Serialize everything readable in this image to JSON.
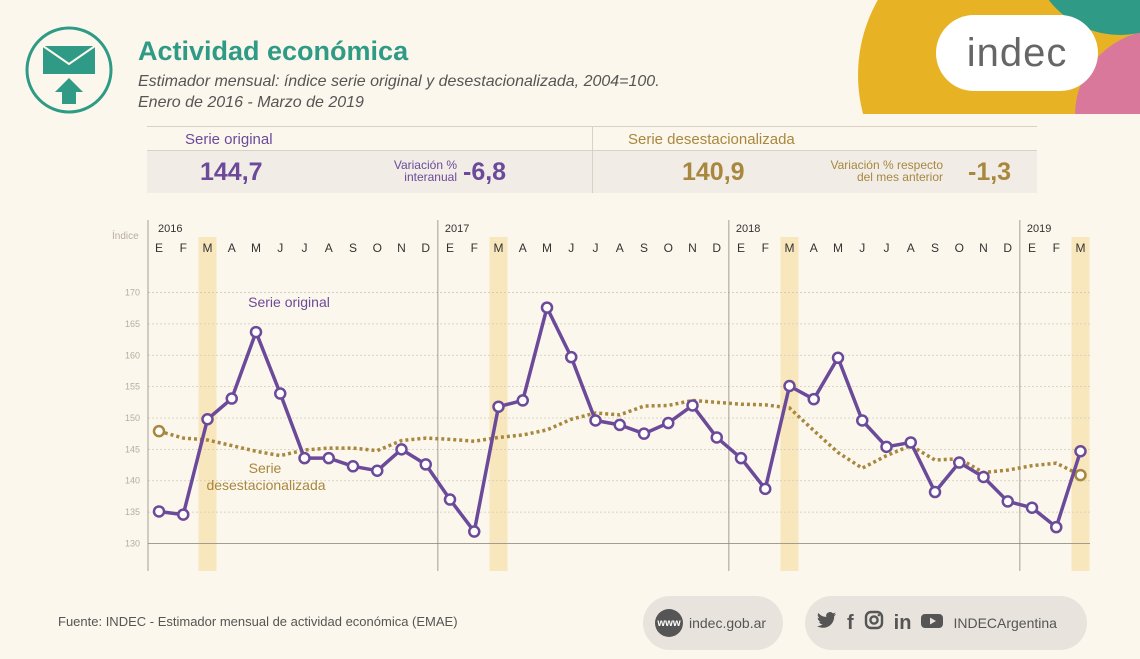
{
  "header": {
    "title": "Actividad económica",
    "subtitle_line1": "Estimador mensual: índice serie original y desestacionalizada, 2004=100.",
    "subtitle_line2": "Enero de 2016 - Marzo de 2019",
    "logo_text": "indec"
  },
  "stats": {
    "original": {
      "label": "Serie original",
      "value": "144,7",
      "variation_label_1": "Variación %",
      "variation_label_2": "interanual",
      "variation_value": "-6,8"
    },
    "deseasonal": {
      "label": "Serie desestacionalizada",
      "value": "140,9",
      "variation_label_1": "Variación % respecto",
      "variation_label_2": "del mes anterior",
      "variation_value": "-1,3"
    }
  },
  "footer": {
    "source": "Fuente: INDEC - Estimador mensual de actividad económica (EMAE)",
    "web_badge": "www",
    "web_text": "indec.gob.ar",
    "social_handle": "INDECArgentina",
    "social_icons": [
      "twitter-icon",
      "facebook-icon",
      "instagram-icon",
      "linkedin-icon",
      "youtube-icon"
    ]
  },
  "colors": {
    "accent": "#2f9a86",
    "original": "#6b4a9a",
    "deseasonal": "#a8873e",
    "highlight": "#f8e7bd",
    "deco_yellow": "#e7b325",
    "deco_teal": "#2f9a86",
    "deco_pink": "#d9789a"
  },
  "chart_data": {
    "type": "line",
    "ylabel": "Índice",
    "ylim": [
      128,
      172
    ],
    "yticks": [
      130,
      135,
      140,
      145,
      150,
      155,
      160,
      165,
      170
    ],
    "years": [
      "2016",
      "2017",
      "2018",
      "2019"
    ],
    "months": [
      "E",
      "F",
      "M",
      "A",
      "M",
      "J",
      "J",
      "A",
      "S",
      "O",
      "N",
      "D",
      "E",
      "F",
      "M",
      "A",
      "M",
      "J",
      "J",
      "A",
      "S",
      "O",
      "N",
      "D",
      "E",
      "F",
      "M",
      "A",
      "M",
      "J",
      "J",
      "A",
      "S",
      "O",
      "N",
      "D",
      "E",
      "F",
      "M"
    ],
    "highlighted_month_indices": [
      2,
      14,
      26,
      38
    ],
    "series": [
      {
        "name": "Serie original",
        "label_lines": [
          "Serie original"
        ],
        "values": [
          135.1,
          134.6,
          149.8,
          153.1,
          163.7,
          153.9,
          143.6,
          143.6,
          142.3,
          141.6,
          145.0,
          142.6,
          137.0,
          131.9,
          151.8,
          152.8,
          167.6,
          159.7,
          149.6,
          148.9,
          147.5,
          149.2,
          152.0,
          146.9,
          143.6,
          138.7,
          155.1,
          153.0,
          159.6,
          149.6,
          145.4,
          146.1,
          138.2,
          142.9,
          140.6,
          136.7,
          135.7,
          132.6,
          144.7
        ]
      },
      {
        "name": "Serie desestacionalizada",
        "label_lines": [
          "Serie",
          "desestacionalizada"
        ],
        "values": [
          147.9,
          146.8,
          146.5,
          145.6,
          144.7,
          144.0,
          144.9,
          145.2,
          145.2,
          144.8,
          146.4,
          146.8,
          146.6,
          146.3,
          146.9,
          147.3,
          148.1,
          149.8,
          150.8,
          150.5,
          151.9,
          152.0,
          152.8,
          152.5,
          152.2,
          152.1,
          151.6,
          148.0,
          144.5,
          142.0,
          144.0,
          145.6,
          143.3,
          143.5,
          141.3,
          141.7,
          142.4,
          142.8,
          140.9
        ]
      }
    ]
  }
}
